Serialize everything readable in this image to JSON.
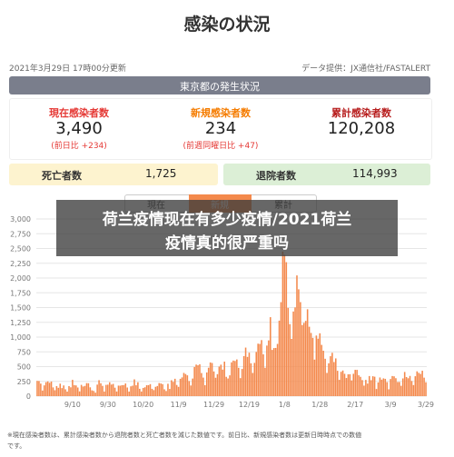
{
  "header": {
    "title": "感染の状況",
    "updated": "2021年3月29日 17時00分更新",
    "source": "データ提供：JX通信社/FASTALERT"
  },
  "section_title": "東京都の発生状況",
  "stats": [
    {
      "label": "現在感染者数",
      "value": "3,490",
      "change": "(前日比 +234)"
    },
    {
      "label": "新規感染者数",
      "value": "234",
      "change": "(前週同曜日比 +47)"
    },
    {
      "label": "累計感染者数",
      "value": "120,208"
    }
  ],
  "summary": [
    {
      "label": "死亡者数",
      "value": "1,725"
    },
    {
      "label": "退院者数",
      "value": "114,993"
    }
  ],
  "tabs": [
    "現在",
    "新規",
    "累計"
  ],
  "chart_data": {
    "type": "bar",
    "color": "#f4894c",
    "grid": true,
    "ylim": [
      0,
      3000
    ],
    "yticks": [
      0,
      250,
      500,
      750,
      {
        "value": 1000,
        "label": "1,000"
      },
      {
        "value": 1250,
        "label": "1,250"
      },
      {
        "value": 1500,
        "label": "1,500"
      },
      {
        "value": 1750,
        "label": "1,750"
      },
      {
        "value": 2000,
        "label": "2,000"
      },
      {
        "value": 2250,
        "label": "2,250"
      },
      {
        "value": 2500,
        "label": "2,500"
      },
      {
        "value": 2750,
        "label": "2,750"
      },
      {
        "value": 3000,
        "label": "3,000"
      }
    ],
    "categories": [
      null,
      null,
      null,
      null,
      null,
      null,
      null,
      null,
      null,
      null,
      null,
      null,
      null,
      null,
      null,
      null,
      null,
      null,
      null,
      null,
      "9/10",
      null,
      null,
      null,
      null,
      null,
      null,
      null,
      null,
      null,
      null,
      null,
      null,
      null,
      null,
      null,
      null,
      null,
      null,
      null,
      "9/30",
      null,
      null,
      null,
      null,
      null,
      null,
      null,
      null,
      null,
      null,
      null,
      null,
      null,
      null,
      null,
      null,
      null,
      null,
      null,
      "10/20",
      null,
      null,
      null,
      null,
      null,
      null,
      null,
      null,
      null,
      null,
      null,
      null,
      null,
      null,
      null,
      null,
      null,
      null,
      null,
      "11/9",
      null,
      null,
      null,
      null,
      null,
      null,
      null,
      null,
      null,
      null,
      null,
      null,
      null,
      null,
      null,
      null,
      null,
      null,
      null,
      "11/29",
      null,
      null,
      null,
      null,
      null,
      null,
      null,
      null,
      null,
      null,
      null,
      null,
      null,
      null,
      null,
      null,
      null,
      null,
      null,
      "12/19",
      null,
      null,
      null,
      null,
      null,
      null,
      null,
      null,
      null,
      null,
      null,
      null,
      null,
      null,
      null,
      null,
      null,
      null,
      null,
      "1/8",
      null,
      null,
      null,
      null,
      null,
      null,
      null,
      null,
      null,
      null,
      null,
      null,
      null,
      null,
      null,
      null,
      null,
      null,
      null,
      "1/28",
      null,
      null,
      null,
      null,
      null,
      null,
      null,
      null,
      null,
      null,
      null,
      null,
      null,
      null,
      null,
      null,
      null,
      null,
      null,
      "2/17",
      null,
      null,
      null,
      null,
      null,
      null,
      null,
      null,
      null,
      null,
      null,
      null,
      null,
      null,
      null,
      null,
      null,
      null,
      null,
      "3/9",
      null,
      null,
      null,
      null,
      null,
      null,
      null,
      null,
      null,
      null,
      null,
      null,
      null,
      null,
      null,
      null,
      null,
      null,
      null,
      "3/29"
    ],
    "values": [
      258,
      256,
      212,
      95,
      182,
      236,
      250,
      226,
      247,
      148,
      100,
      170,
      141,
      211,
      136,
      181,
      116,
      77,
      170,
      149,
      276,
      187,
      181,
      146,
      80,
      191,
      163,
      173,
      220,
      218,
      149,
      98,
      88,
      59,
      195,
      270,
      218,
      174,
      78,
      191,
      194,
      235,
      196,
      207,
      143,
      78,
      178,
      177,
      186,
      187,
      214,
      146,
      77,
      166,
      177,
      284,
      184,
      235,
      124,
      78,
      139,
      150,
      185,
      186,
      203,
      124,
      102,
      158,
      171,
      221,
      215,
      203,
      116,
      87,
      209,
      122,
      269,
      242,
      294,
      189,
      157,
      293,
      317,
      393,
      374,
      352,
      255,
      180,
      298,
      493,
      534,
      522,
      539,
      391,
      314,
      186,
      401,
      481,
      570,
      561,
      418,
      311,
      372,
      500,
      533,
      449,
      584,
      327,
      299,
      352,
      572,
      602,
      595,
      621,
      480,
      305,
      460,
      678,
      822,
      664,
      736,
      556,
      392,
      563,
      748,
      888,
      884,
      949,
      708,
      481,
      856,
      944,
      1337,
      783,
      814,
      816,
      884,
      1278,
      1591,
      2447,
      2392,
      2268,
      1494,
      1219,
      970,
      1433,
      1502,
      2044,
      1809,
      1592,
      1204,
      1240,
      1274,
      1471,
      1175,
      1070,
      986,
      618,
      1026,
      973,
      1064,
      868,
      769,
      633,
      393,
      556,
      676,
      734,
      577,
      639,
      429,
      276,
      412,
      434,
      378,
      307,
      369,
      371,
      266,
      378,
      445,
      445,
      353,
      327,
      272,
      178,
      275,
      213,
      340,
      270,
      337,
      329,
      121,
      232,
      316,
      279,
      301,
      293,
      237,
      116,
      290,
      340,
      335,
      304,
      239,
      239,
      175,
      300,
      409,
      323,
      303,
      342,
      256,
      187,
      337,
      420,
      394,
      376,
      430,
      313,
      234
    ]
  },
  "footnote": [
    "※現在感染者数は、累計感染者数から退院者数と死亡者数を減じた数値です。前日比、新規感染者数は更新日時時点での数値",
    "です。"
  ],
  "overlay": {
    "lines": [
      "荷兰疫情现在有多少疫情/2021荷兰",
      "疫情真的很严重吗"
    ]
  }
}
